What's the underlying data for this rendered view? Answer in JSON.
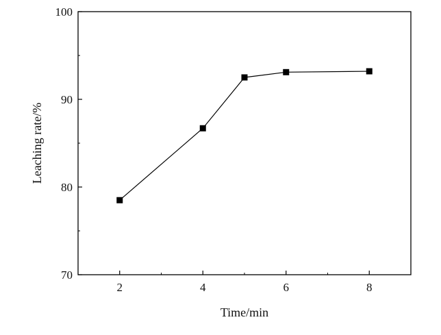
{
  "chart_data": {
    "type": "line",
    "title": "",
    "xlabel": "Time/min",
    "ylabel": "Leaching rate/%",
    "xlim": [
      1,
      9
    ],
    "ylim": [
      70,
      100
    ],
    "x_ticks": [
      2,
      4,
      6,
      8
    ],
    "x_tick_labels": [
      "2",
      "4",
      "6",
      "8"
    ],
    "y_ticks": [
      70,
      80,
      90,
      100
    ],
    "y_tick_labels": [
      "70",
      "80",
      "90",
      "100"
    ],
    "grid": false,
    "legend": "none",
    "marker": "square",
    "line_color": "#000000",
    "series": [
      {
        "x": [
          2,
          4,
          5,
          6,
          8
        ],
        "y": [
          78.5,
          86.7,
          92.5,
          93.1,
          93.2
        ]
      }
    ]
  }
}
